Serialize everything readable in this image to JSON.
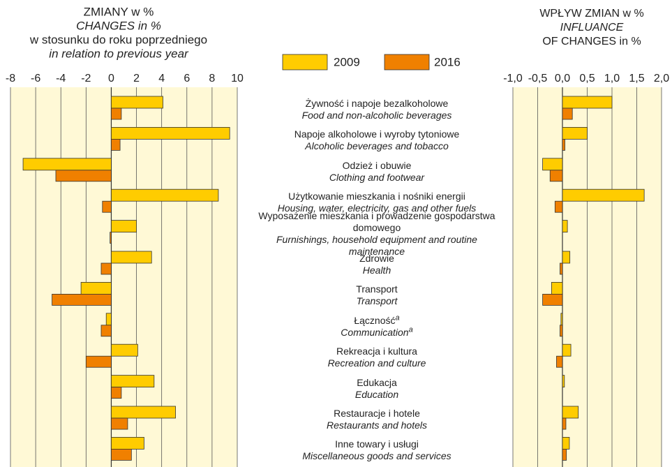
{
  "chart_data": [
    {
      "type": "bar",
      "orientation": "horizontal",
      "title": [
        "ZMIANY w %",
        "CHANGES in %",
        "w stosunku do roku poprzedniego",
        "in relation to previous year"
      ],
      "categories": [
        {
          "pl": "Żywność i napoje bezalkoholowe",
          "en": "Food and non-alcoholic beverages"
        },
        {
          "pl": "Napoje alkoholowe i wyroby tytoniowe",
          "en": "Alcoholic beverages and tobacco"
        },
        {
          "pl": "Odzież i obuwie",
          "en": "Clothing and footwear"
        },
        {
          "pl": "Użytkowanie mieszkania i nośniki energii",
          "en": "Housing, water, electricity, gas and other fuels"
        },
        {
          "pl": "Wyposażenie mieszkania i prowadzenie gospodarstwa domowego",
          "en": "Furnishings, household equipment and routine maintenance"
        },
        {
          "pl": "Zdrowie",
          "en": "Health"
        },
        {
          "pl": "Transport",
          "en": "Transport"
        },
        {
          "pl": "Łączność",
          "en": "Communication",
          "mark": "a"
        },
        {
          "pl": "Rekreacja i kultura",
          "en": "Recreation and culture"
        },
        {
          "pl": "Edukacja",
          "en": "Education"
        },
        {
          "pl": "Restauracje i hotele",
          "en": "Restaurants and hotels"
        },
        {
          "pl": "Inne towary i usługi",
          "en": "Miscellaneous goods and services"
        }
      ],
      "series": [
        {
          "name": "2009",
          "color": "#ffcc00",
          "values": [
            4.1,
            9.4,
            -7.0,
            8.5,
            2.0,
            3.2,
            -2.4,
            -0.4,
            2.1,
            3.4,
            5.1,
            2.6
          ]
        },
        {
          "name": "2016",
          "color": "#f08000",
          "values": [
            0.8,
            0.7,
            -4.4,
            -0.7,
            -0.1,
            -0.8,
            -4.7,
            -0.8,
            -2.0,
            0.8,
            1.3,
            1.6
          ]
        }
      ],
      "xlim": [
        -8,
        10
      ],
      "xticks": [
        -8,
        -6,
        -4,
        -2,
        0,
        2,
        4,
        6,
        8,
        10
      ],
      "grid": true
    },
    {
      "type": "bar",
      "orientation": "horizontal",
      "title": [
        "WPŁYW ZMIAN w %",
        "INFLUANCE",
        "OF CHANGES in %"
      ],
      "series": [
        {
          "color": "#ffcc00",
          "values": [
            1.0,
            0.5,
            -0.4,
            1.65,
            0.1,
            0.15,
            -0.22,
            -0.03,
            0.17,
            0.04,
            0.32,
            0.14
          ]
        },
        {
          "color": "#f08000",
          "values": [
            0.2,
            0.05,
            -0.25,
            -0.15,
            0.0,
            -0.05,
            -0.4,
            -0.05,
            -0.12,
            0.0,
            0.07,
            0.08
          ]
        }
      ],
      "xlim": [
        -1,
        2
      ],
      "xticks": [
        {
          "value": -1,
          "label": "-1,0"
        },
        {
          "value": -0.5,
          "label": "-0,5"
        },
        {
          "value": 0,
          "label": "0,0"
        },
        {
          "value": 0.5,
          "label": "0,5"
        },
        {
          "value": 1,
          "label": "1,0"
        },
        {
          "value": 1.5,
          "label": "1,5"
        },
        {
          "value": 2,
          "label": "2,0"
        }
      ],
      "grid": true
    }
  ]
}
